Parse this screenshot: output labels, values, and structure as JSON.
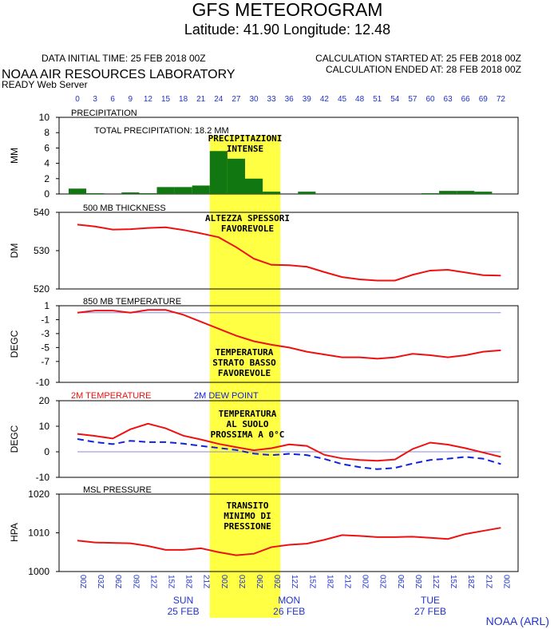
{
  "header": {
    "title": "GFS METEOROGRAM",
    "coords": "Latitude: 41.90 Longitude:  12.48",
    "initial_time": "DATA INITIAL TIME: 25 FEB 2018 00Z",
    "calc_started": "CALCULATION STARTED AT: 25 FEB 2018 00Z",
    "calc_ended": "CALCULATION ENDED AT: 28 FEB 2018 00Z",
    "lab": "NOAA AIR RESOURCES LABORATORY",
    "server": "READY Web Server",
    "credit": "NOAA (ARL)"
  },
  "colors": {
    "line": "#ee1111",
    "dew": "#1122dd",
    "bars": "#117711",
    "highlight": "#ffff44",
    "axis_text_blue": "#2233cc",
    "ref_line": "#8888dd"
  },
  "hours_top": [
    "0",
    "3",
    "6",
    "9",
    "12",
    "15",
    "18",
    "21",
    "24",
    "27",
    "30",
    "33",
    "36",
    "39",
    "42",
    "45",
    "48",
    "51",
    "54",
    "57",
    "60",
    "63",
    "66",
    "69",
    "72"
  ],
  "hour_labels_bottom": [
    "00Z",
    "03Z",
    "06Z",
    "09Z",
    "12Z",
    "15Z",
    "18Z",
    "21Z",
    "00Z",
    "03Z",
    "06Z",
    "09Z",
    "12Z",
    "15Z",
    "18Z",
    "21Z",
    "00Z",
    "03Z",
    "06Z",
    "09Z",
    "12Z",
    "15Z",
    "18Z",
    "21Z",
    "00Z"
  ],
  "days": [
    {
      "day": "SUN",
      "date": "25 FEB",
      "index": 6
    },
    {
      "day": "MON",
      "date": "26 FEB",
      "index": 12
    },
    {
      "day": "TUE",
      "date": "27 FEB",
      "index": 20
    }
  ],
  "annotations": [
    {
      "panel": 0,
      "lines": [
        "PRECIPITAZIONI",
        "INTENSE"
      ]
    },
    {
      "panel": 1,
      "lines": [
        "ALTEZZA SPESSORI",
        "FAVOREVOLE"
      ]
    },
    {
      "panel": 2,
      "lines": [
        "TEMPERATURA",
        "STRATO BASSO",
        "FAVOREVOLE"
      ]
    },
    {
      "panel": 3,
      "lines": [
        "TEMPERATURA",
        "AL SUOLO",
        "PROSSIMA A 0°C"
      ]
    },
    {
      "panel": 4,
      "lines": [
        "TRANSITO",
        "MINIMO DI",
        "PRESSIONE"
      ]
    }
  ],
  "chart_data": [
    {
      "type": "bar",
      "title": "PRECIPITATION",
      "note": "TOTAL PRECIPITATION:  18.2 MM",
      "ylabel": "MM",
      "ylim": [
        0,
        10
      ],
      "yticks": [
        0,
        2,
        4,
        6,
        8,
        10
      ],
      "x_hours": [
        0,
        3,
        6,
        9,
        12,
        15,
        18,
        21,
        24,
        27,
        30,
        33,
        36,
        39,
        42,
        45,
        48,
        51,
        54,
        57,
        60,
        63,
        66,
        69
      ],
      "values": [
        0.7,
        0.1,
        0.0,
        0.2,
        0.1,
        0.9,
        0.9,
        1.1,
        5.6,
        4.6,
        2.0,
        0.3,
        0.0,
        0.3,
        0.0,
        0.0,
        0.0,
        0.0,
        0.0,
        0.0,
        0.1,
        0.4,
        0.4,
        0.3
      ]
    },
    {
      "type": "line",
      "title": "500 MB  THICKNESS",
      "ylabel": "DM",
      "ylim": [
        520,
        540
      ],
      "yticks": [
        520,
        530,
        540
      ],
      "series": [
        {
          "x": [
            0,
            3,
            6,
            9,
            12,
            15,
            18,
            21,
            24,
            27,
            30,
            33,
            36,
            39,
            42,
            45,
            48,
            51,
            54,
            57,
            60,
            63,
            66,
            69,
            72
          ],
          "values": [
            536.8,
            536.3,
            535.5,
            535.6,
            535.9,
            536.1,
            535.4,
            534.5,
            533.5,
            530.9,
            527.9,
            526.3,
            526.2,
            525.8,
            524.4,
            523.1,
            522.5,
            522.2,
            522.2,
            523.7,
            524.8,
            525.0,
            524.3,
            523.6,
            523.5
          ]
        }
      ]
    },
    {
      "type": "line",
      "title": "850 MB  TEMPERATURE",
      "ylabel": "DEGC",
      "ylim": [
        -10,
        1
      ],
      "yticks": [
        1,
        -1,
        -3,
        -5,
        -7,
        -10
      ],
      "reference_line": 0,
      "series": [
        {
          "x": [
            0,
            3,
            6,
            9,
            12,
            15,
            18,
            21,
            24,
            27,
            30,
            33,
            36,
            39,
            42,
            45,
            48,
            51,
            54,
            57,
            60,
            63,
            66,
            69,
            72
          ],
          "values": [
            0.0,
            0.3,
            0.3,
            0.0,
            0.4,
            0.4,
            -0.3,
            -1.3,
            -2.3,
            -3.3,
            -4.1,
            -4.6,
            -5.0,
            -5.6,
            -6.0,
            -6.4,
            -6.4,
            -6.6,
            -6.4,
            -5.9,
            -6.1,
            -6.4,
            -6.1,
            -5.6,
            -5.4
          ]
        }
      ]
    },
    {
      "type": "line",
      "title": "2M TEMPERATURE",
      "title2": "2M  DEW POINT",
      "ylabel": "DEGC",
      "ylim": [
        -10,
        20
      ],
      "yticks": [
        -10,
        0,
        10,
        20
      ],
      "reference_line": 0,
      "series": [
        {
          "name": "2M TEMPERATURE",
          "x": [
            0,
            3,
            6,
            9,
            12,
            15,
            18,
            21,
            24,
            27,
            30,
            33,
            36,
            39,
            42,
            45,
            48,
            51,
            54,
            57,
            60,
            63,
            66,
            69,
            72
          ],
          "values": [
            7,
            6.2,
            5.2,
            8.8,
            11,
            9.2,
            6.3,
            4.8,
            3.1,
            1.8,
            0.6,
            1.4,
            2.9,
            2.3,
            -1.2,
            -2.6,
            -3.2,
            -3.5,
            -3.0,
            1.1,
            3.6,
            2.8,
            1.4,
            -0.3,
            -2.0
          ]
        },
        {
          "name": "2M  DEW POINT",
          "x": [
            0,
            3,
            6,
            9,
            12,
            15,
            18,
            21,
            24,
            27,
            30,
            33,
            36,
            39,
            42,
            45,
            48,
            51,
            54,
            57,
            60,
            63,
            66,
            69,
            72
          ],
          "values": [
            5.0,
            3.8,
            3.0,
            4.3,
            3.8,
            3.8,
            3.2,
            2.3,
            1.5,
            0.7,
            -0.7,
            -1.3,
            -0.8,
            -1.3,
            -2.8,
            -4.8,
            -6.0,
            -6.8,
            -6.3,
            -4.6,
            -3.2,
            -2.7,
            -2.0,
            -2.7,
            -4.8
          ]
        }
      ]
    },
    {
      "type": "line",
      "title": "MSL PRESSURE",
      "ylabel": "HPA",
      "ylim": [
        1000,
        1020
      ],
      "yticks": [
        1000,
        1010,
        1020
      ],
      "series": [
        {
          "x": [
            0,
            3,
            6,
            9,
            12,
            15,
            18,
            21,
            24,
            27,
            30,
            33,
            36,
            39,
            42,
            45,
            48,
            51,
            54,
            57,
            60,
            63,
            66,
            69,
            72
          ],
          "values": [
            1008.0,
            1007.5,
            1007.4,
            1007.3,
            1006.6,
            1005.6,
            1005.6,
            1006.0,
            1005.0,
            1004.2,
            1004.6,
            1006.3,
            1006.9,
            1007.2,
            1008.2,
            1009.4,
            1009.2,
            1008.9,
            1008.9,
            1009.0,
            1008.7,
            1008.4,
            1009.7,
            1010.5,
            1011.3
          ]
        }
      ]
    }
  ]
}
